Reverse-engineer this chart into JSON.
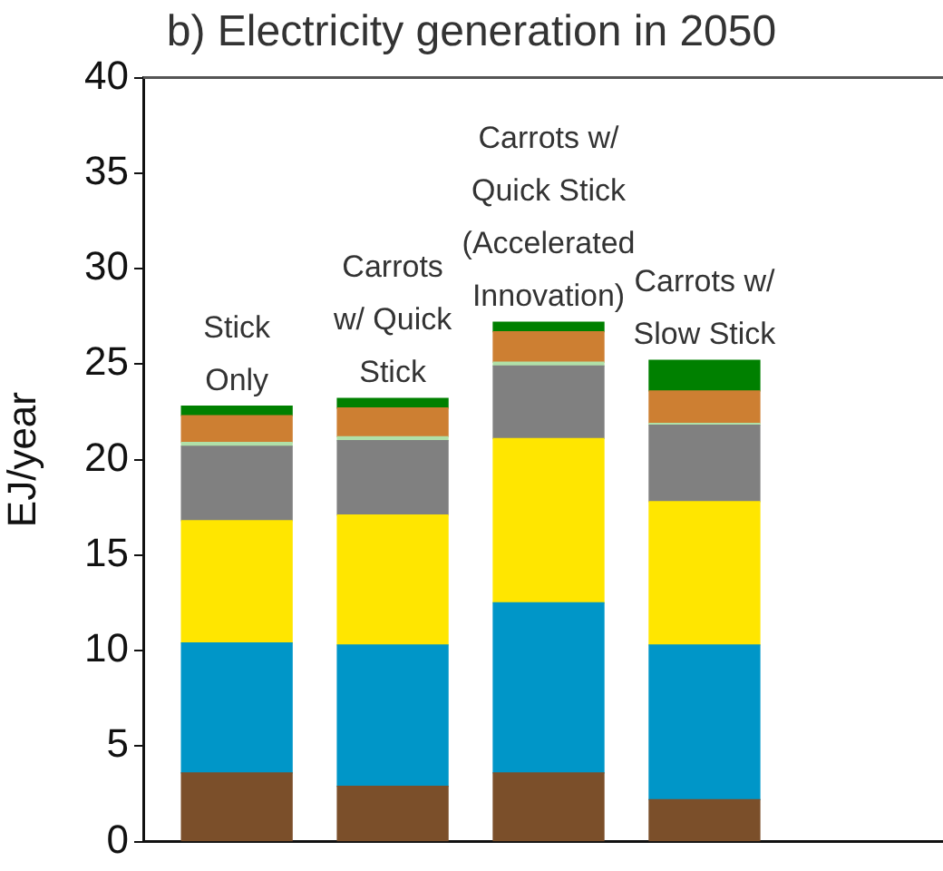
{
  "chart_data": {
    "type": "bar",
    "title": "b) Electricity generation in 2050",
    "ylabel": "EJ/year",
    "stacked": true,
    "categories": [
      "Stick\nOnly",
      "Carrots\nw/ Quick\nStick",
      "Carrots w/\nQuick Stick\n(Accelerated\nInnovation)",
      "Carrots w/\nSlow Stick"
    ],
    "series": [
      {
        "color": "#7b4f2a",
        "values": [
          3.6,
          2.9,
          3.6,
          2.2
        ]
      },
      {
        "color": "#0096c8",
        "values": [
          6.8,
          7.4,
          8.9,
          8.1
        ]
      },
      {
        "color": "#ffe600",
        "values": [
          6.4,
          6.8,
          8.6,
          7.5
        ]
      },
      {
        "color": "#808080",
        "values": [
          3.9,
          3.9,
          3.8,
          4.0
        ]
      },
      {
        "color": "#b0e0a8",
        "values": [
          0.2,
          0.2,
          0.2,
          0.1
        ]
      },
      {
        "color": "#cd7f32",
        "values": [
          1.4,
          1.5,
          1.6,
          1.7
        ]
      },
      {
        "color": "#008000",
        "values": [
          0.5,
          0.5,
          0.5,
          1.6
        ]
      }
    ],
    "ylim": [
      0,
      40
    ],
    "yticks": [
      0,
      5,
      10,
      15,
      20,
      25,
      30,
      35,
      40
    ]
  }
}
